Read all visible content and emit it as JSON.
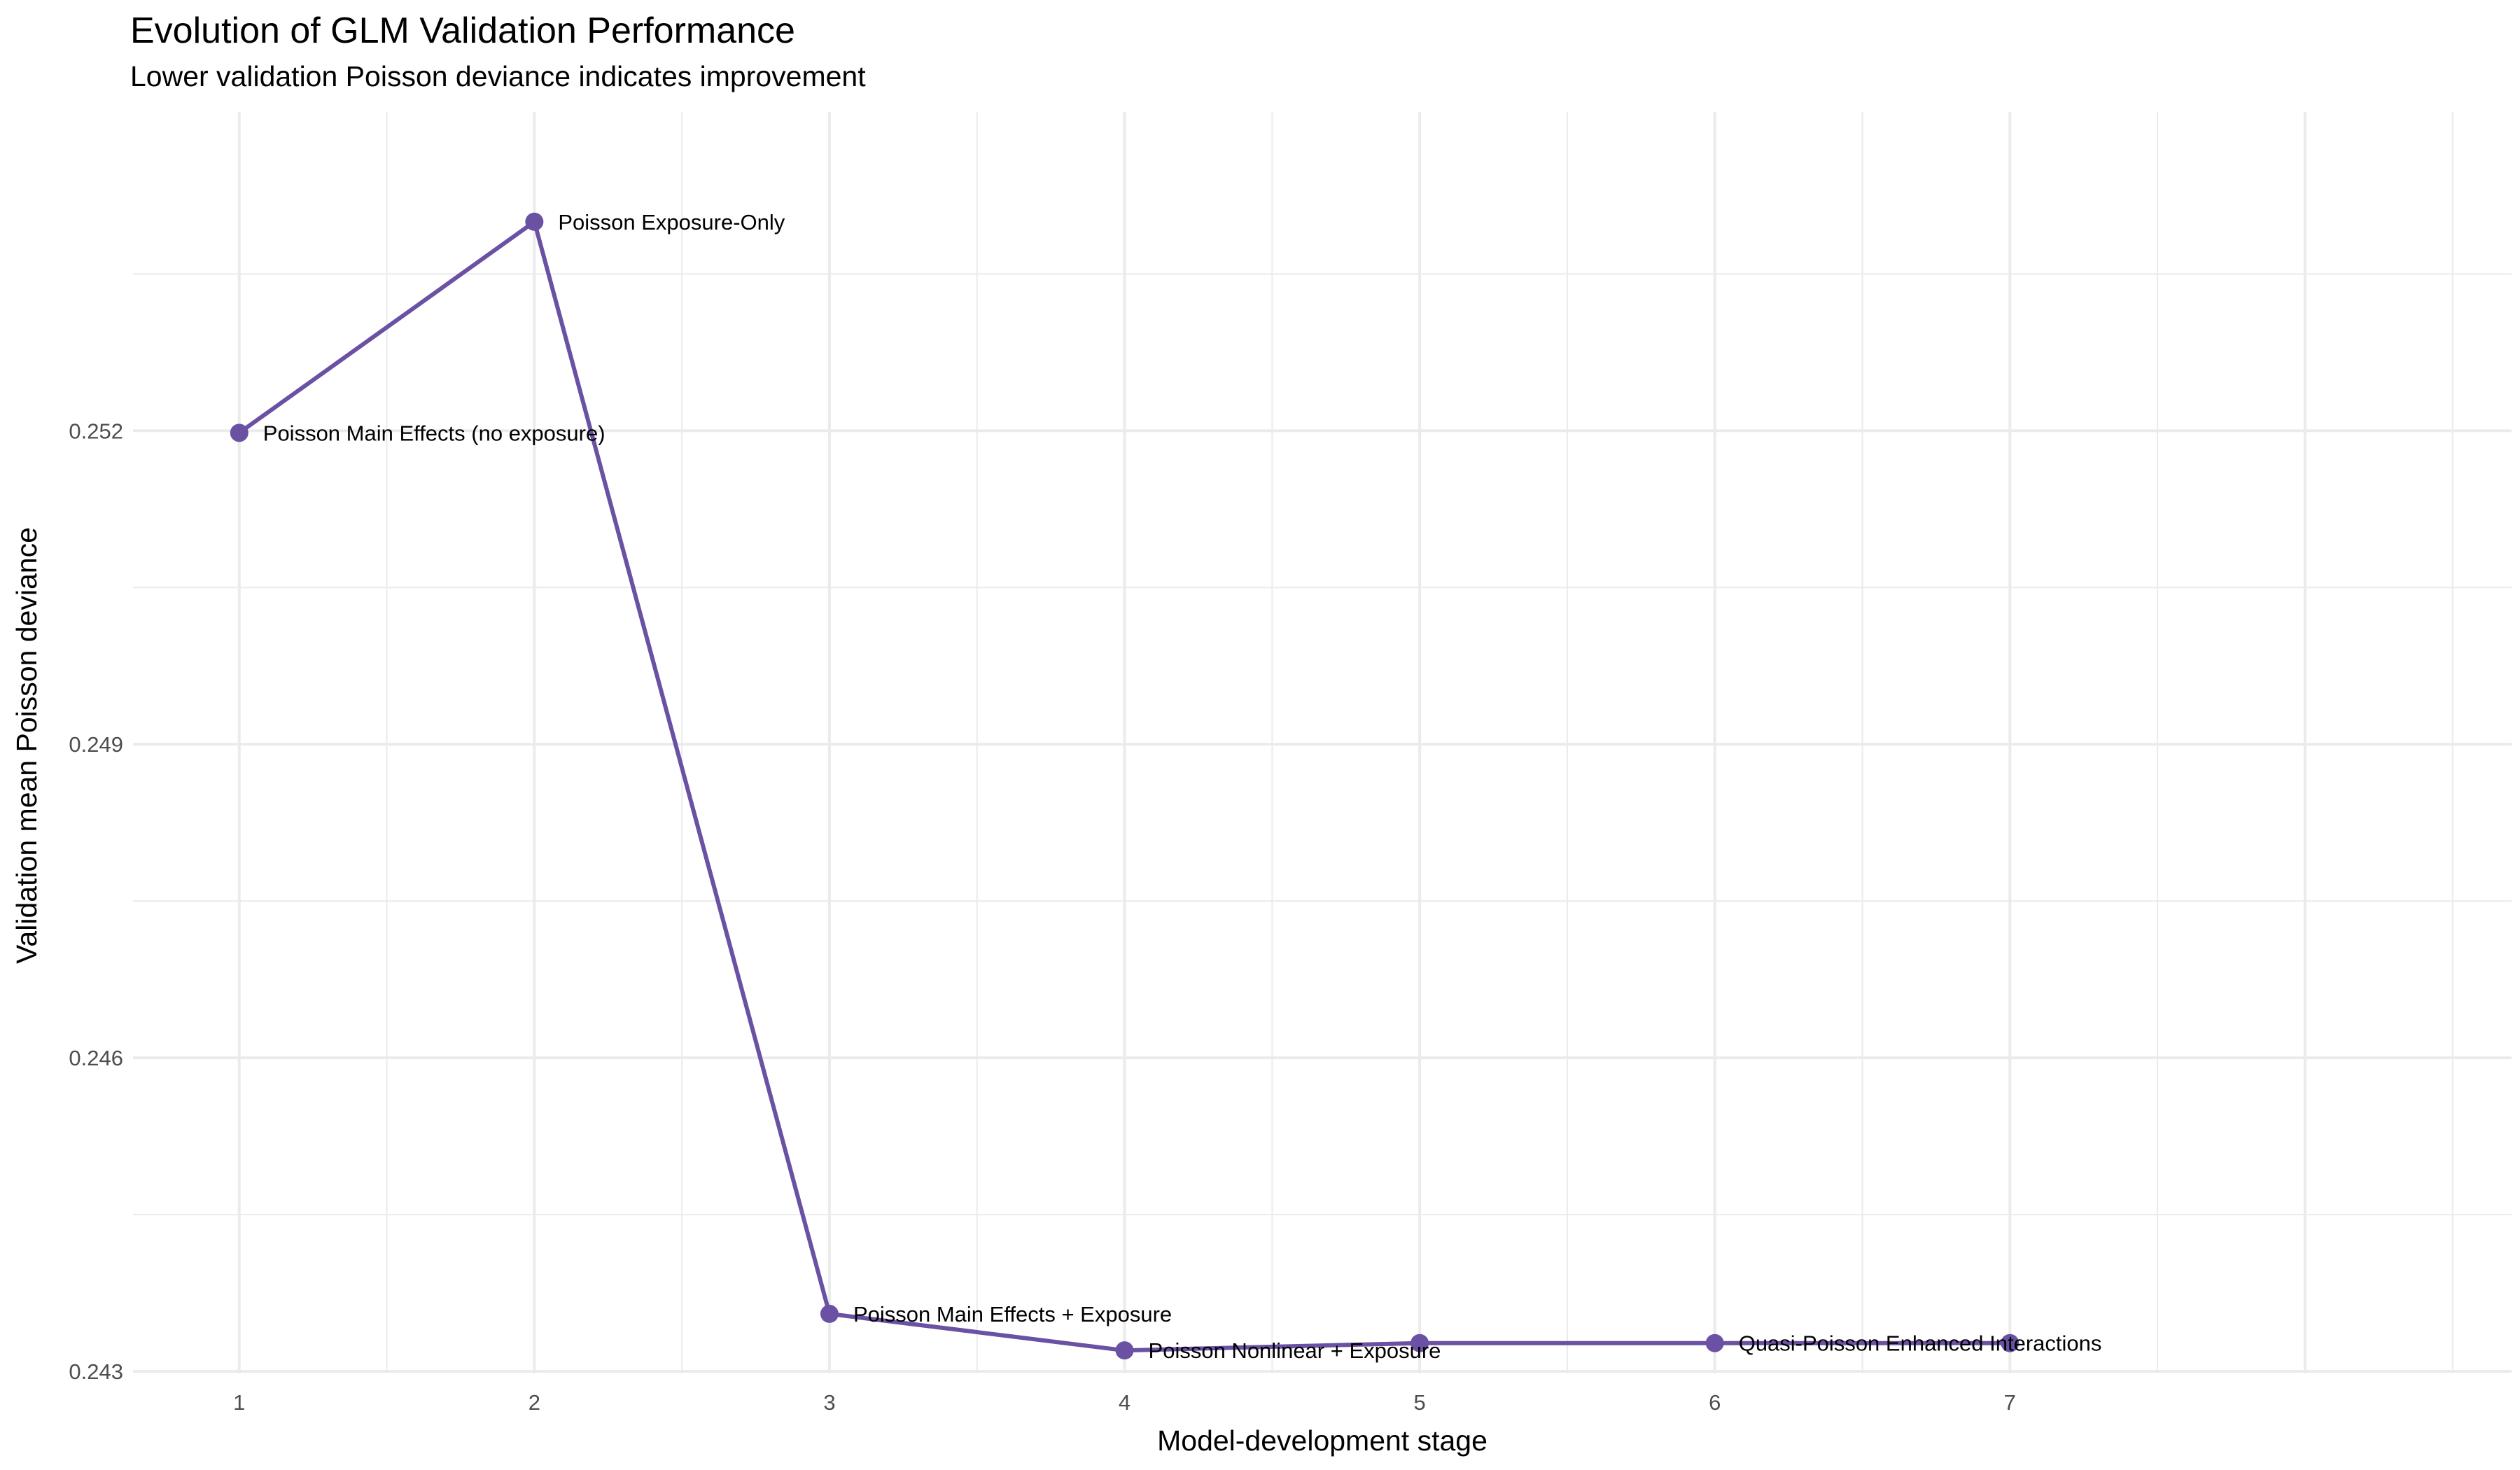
{
  "chart_data": {
    "type": "line",
    "title": "Evolution of GLM Validation Performance",
    "subtitle": "Lower validation Poisson deviance indicates improvement",
    "xlabel": "Model-development stage",
    "ylabel": "Validation mean Poisson deviance",
    "x": [
      1,
      2,
      3,
      4,
      5,
      6,
      7
    ],
    "y": [
      0.25198,
      0.254,
      0.24355,
      0.2432,
      0.24327,
      0.24327,
      0.24327
    ],
    "point_labels": [
      "Poisson Main Effects (no exposure)",
      "Poisson Exposure-Only",
      "Poisson Main Effects + Exposure",
      "Poisson Nonlinear + Exposure",
      "",
      "Quasi-Poisson Enhanced Interactions",
      ""
    ],
    "x_ticks": [
      1,
      2,
      3,
      4,
      5,
      6,
      7
    ],
    "x_tick_labels": [
      "1",
      "2",
      "3",
      "4",
      "5",
      "6",
      "7"
    ],
    "y_ticks": [
      0.243,
      0.246,
      0.249,
      0.252
    ],
    "y_tick_labels": [
      "0.243",
      "0.246",
      "0.249",
      "0.252"
    ],
    "xlim": [
      0.64,
      8.7
    ],
    "ylim": [
      0.24298,
      0.25505
    ],
    "grid": true,
    "legend": "none",
    "line_color": "#6a51a3",
    "point_color": "#6a51a3",
    "grid_color": "#ebebeb"
  }
}
